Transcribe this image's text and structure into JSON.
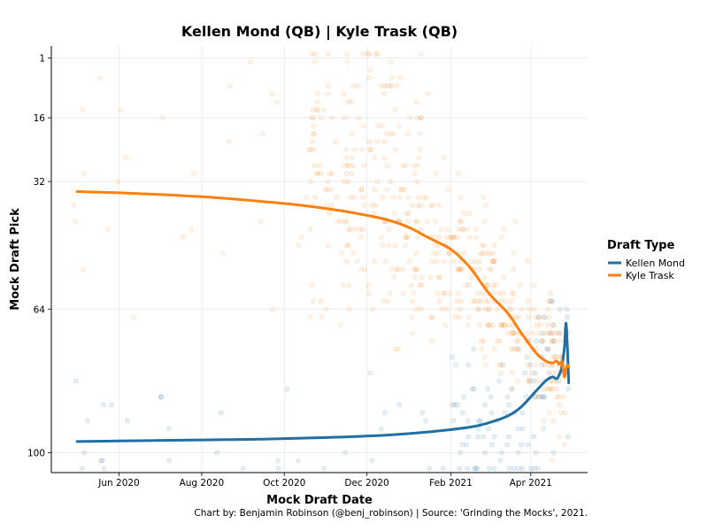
{
  "chart_data": {
    "type": "line",
    "title": "Kellen Mond (QB) | Kyle Trask (QB)",
    "xlabel": "Mock Draft Date",
    "ylabel": "Mock Draft Pick",
    "x_ticks": [
      "Jun 2020",
      "Aug 2020",
      "Oct 2020",
      "Dec 2020",
      "Feb 2021",
      "Apr 2021"
    ],
    "x_tick_dates": [
      "2020-06-01",
      "2020-08-01",
      "2020-10-01",
      "2020-12-01",
      "2021-02-01",
      "2021-04-01"
    ],
    "xlim": [
      "2020-04-12",
      "2021-05-13"
    ],
    "y_ticks": [
      1,
      16,
      32,
      64,
      100
    ],
    "ylim": [
      105,
      -2
    ],
    "y_reversed": true,
    "grid": true,
    "legend": {
      "title": "Draft Type",
      "position": "right"
    },
    "caption": "Chart by: Benjamin Robinson (@benj_robinson) | Source: 'Grinding the Mocks', 2021.",
    "series": [
      {
        "name": "Kellen Mond",
        "color": "#1f6fa3",
        "x": [
          "2020-05-01",
          "2020-06-15",
          "2020-08-01",
          "2020-09-15",
          "2020-11-01",
          "2020-12-15",
          "2021-01-15",
          "2021-02-15",
          "2021-03-01",
          "2021-03-15",
          "2021-03-25",
          "2021-04-05",
          "2021-04-12",
          "2021-04-17",
          "2021-04-20",
          "2021-04-22",
          "2021-04-24",
          "2021-04-25",
          "2021-04-26",
          "2021-04-27",
          "2021-04-28",
          "2021-04-29"
        ],
        "y": [
          97.2,
          97.0,
          96.8,
          96.6,
          96.2,
          95.6,
          94.8,
          93.6,
          92.5,
          90.8,
          88.5,
          84.5,
          82.0,
          81.0,
          81.5,
          80.5,
          78.5,
          76.0,
          73.0,
          67.5,
          73.0,
          82.5
        ]
      },
      {
        "name": "Kyle Trask",
        "color": "#ff7f0e",
        "x": [
          "2020-05-01",
          "2020-06-15",
          "2020-08-01",
          "2020-09-15",
          "2020-10-15",
          "2020-11-15",
          "2020-12-15",
          "2021-01-01",
          "2021-01-15",
          "2021-02-01",
          "2021-02-15",
          "2021-03-01",
          "2021-03-15",
          "2021-03-25",
          "2021-04-05",
          "2021-04-12",
          "2021-04-17",
          "2021-04-20",
          "2021-04-22",
          "2021-04-24",
          "2021-04-25",
          "2021-04-26",
          "2021-04-27",
          "2021-04-28",
          "2021-04-29"
        ],
        "y": [
          34.5,
          35.0,
          35.8,
          37.0,
          38.0,
          39.5,
          41.5,
          43.5,
          46.0,
          49.0,
          53.5,
          60.0,
          65.0,
          70.0,
          75.0,
          77.0,
          77.5,
          77.0,
          77.8,
          77.2,
          79.5,
          81.0,
          79.0,
          78.0,
          78.5
        ]
      }
    ]
  }
}
